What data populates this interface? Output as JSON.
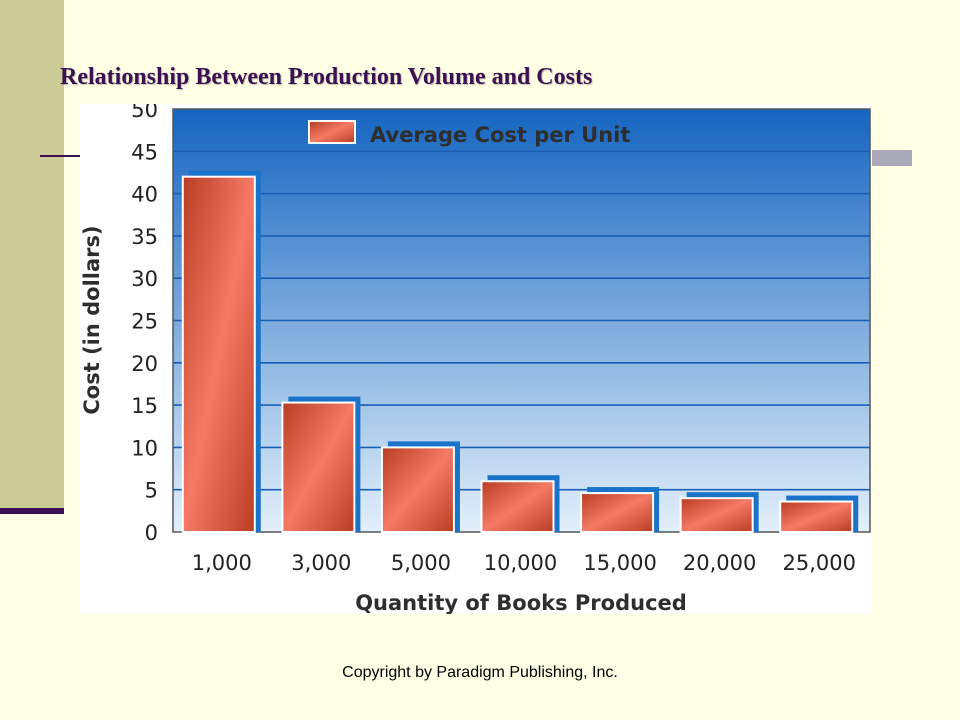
{
  "slide": {
    "title": "Relationship Between Production Volume and Costs",
    "footer": "Copyright by Paradigm Publishing, Inc."
  },
  "colors": {
    "background": "#FFFFE6",
    "accent_band": "#CCCC99",
    "rule": "#3C1052",
    "plot_top": "#1565C0",
    "plot_bottom": "#E3F0FA",
    "grid": "#1A5FB4",
    "bar_shadow": "#1A73C8",
    "bar_light": "#F47A66",
    "bar_dark": "#B83D22"
  },
  "chart_data": {
    "type": "bar",
    "categories": [
      "1,000",
      "3,000",
      "5,000",
      "10,000",
      "15,000",
      "20,000",
      "25,000"
    ],
    "series": [
      {
        "name": "Average Cost per Unit",
        "values": [
          42,
          15.3,
          10,
          6,
          4.6,
          4,
          3.6
        ]
      }
    ],
    "xlabel": "Quantity of Books Produced",
    "ylabel": "Cost (in dollars)",
    "ylim": [
      0,
      50
    ],
    "yticks": [
      0,
      5,
      10,
      15,
      20,
      25,
      30,
      35,
      40,
      45,
      50
    ],
    "grid": true,
    "legend_position": "top-left"
  }
}
